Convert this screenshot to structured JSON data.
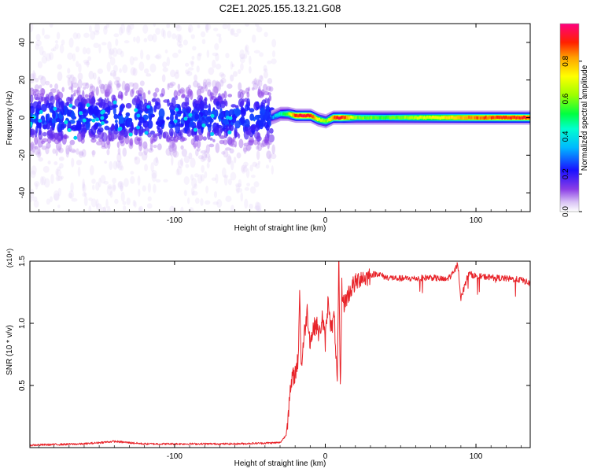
{
  "title": "C2E1.2025.155.13.21.G08",
  "colors": {
    "trace": "#e8242a",
    "spectrum_dark": "#4b0fd0",
    "spectrum_light": "#c7a6f2",
    "axis": "#000000"
  },
  "chart_data": [
    {
      "type": "heatmap",
      "title": "C2E1.2025.155.13.21.G08",
      "xlabel": "Height of straight line (km)",
      "ylabel": "Frequency (Hz)",
      "xlim": [
        -196,
        136
      ],
      "ylim": [
        -50,
        50
      ],
      "x_ticks": [
        -100,
        0,
        100
      ],
      "y_ticks": [
        -40,
        -20,
        0,
        20,
        40
      ],
      "colorbar": {
        "label": "Normalized spectral amplitude",
        "range": [
          0,
          1
        ],
        "ticks": [
          "0.0",
          "0.2",
          "0.4",
          "0.6",
          "0.8"
        ],
        "colormap": "rainbow"
      },
      "ridge": {
        "x": [
          -36,
          -30,
          -25,
          -20,
          -15,
          -10,
          -5,
          0,
          5,
          10,
          20,
          40,
          60,
          80,
          100,
          120,
          136
        ],
        "freq": [
          0,
          2,
          2,
          1,
          1,
          1,
          -1,
          -2,
          0,
          0,
          0,
          0,
          0,
          0,
          0,
          0,
          0
        ],
        "amplitude": [
          0.3,
          0.45,
          0.6,
          0.9,
          0.95,
          0.9,
          0.7,
          0.6,
          0.85,
          0.95,
          0.6,
          0.55,
          0.65,
          0.75,
          0.85,
          0.9,
          0.9
        ]
      }
    },
    {
      "type": "line",
      "xlabel": "Height of straight line (km)",
      "ylabel": "SNR (10 * v/v)",
      "y_multiplier": "(x10⁴)",
      "xlim": [
        -196,
        136
      ],
      "ylim": [
        0,
        1.5
      ],
      "x_ticks": [
        -100,
        0,
        100
      ],
      "y_ticks": [
        0.5,
        1.0,
        1.5
      ],
      "series": [
        {
          "x": [
            -196,
            -160,
            -140,
            -120,
            -60,
            -30,
            -26,
            -24,
            -22,
            -20,
            -18,
            -17,
            -16,
            -14,
            -12,
            -10,
            -8,
            -6,
            -4,
            -2,
            0,
            2,
            4,
            6,
            8,
            9,
            10,
            11,
            12,
            14,
            16,
            18,
            20,
            22,
            24,
            26,
            30,
            35,
            40,
            50,
            60,
            70,
            80,
            85,
            88,
            90,
            95,
            100,
            110,
            120,
            130,
            136
          ],
          "y": [
            0.02,
            0.03,
            0.05,
            0.03,
            0.03,
            0.04,
            0.1,
            0.35,
            0.55,
            0.6,
            0.7,
            1.28,
            0.65,
            0.9,
            1.1,
            0.85,
            0.95,
            1.0,
            0.9,
            1.05,
            0.85,
            1.2,
            0.95,
            1.05,
            0.5,
            1.52,
            0.45,
            1.3,
            1.15,
            1.2,
            1.25,
            1.3,
            1.32,
            1.35,
            1.38,
            1.36,
            1.39,
            1.4,
            1.37,
            1.36,
            1.36,
            1.37,
            1.35,
            1.4,
            1.48,
            1.2,
            1.4,
            1.38,
            1.37,
            1.36,
            1.35,
            1.32
          ]
        }
      ]
    }
  ]
}
